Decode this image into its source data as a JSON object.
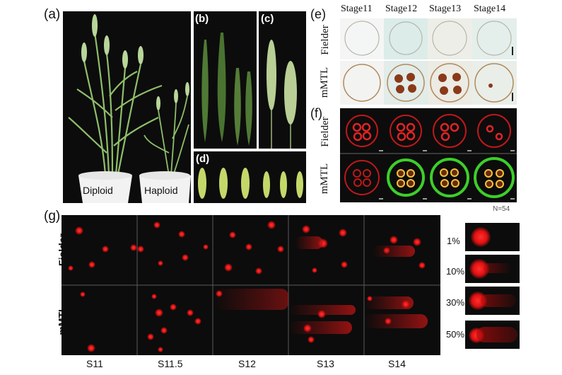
{
  "panel_labels": {
    "a": "(a)",
    "b": "(b)",
    "c": "(c)",
    "d": "(d)",
    "e": "(e)",
    "f": "(f)",
    "g": "(g)"
  },
  "panel_a": {
    "left_label": "Diploid",
    "right_label": "Haploid"
  },
  "panel_e": {
    "stages": [
      "Stage11",
      "Stage12",
      "Stage13",
      "Stage14"
    ],
    "rows": [
      "Fielder",
      "mMTL"
    ]
  },
  "panel_f": {
    "rows": [
      "Fielder",
      "mMTL"
    ],
    "note": "N=54"
  },
  "panel_g": {
    "rows": [
      "Fielder",
      "mMTL"
    ],
    "stages": [
      "S11",
      "S11.5",
      "S12",
      "S13",
      "S14"
    ],
    "percents": [
      "1%",
      "10%",
      "30%",
      "50%"
    ]
  },
  "colors": {
    "background": "#ffffff",
    "panel_dark": "#0c0c0c",
    "stain_red": "#e01010",
    "gfp_green": "#3ccf2a"
  }
}
